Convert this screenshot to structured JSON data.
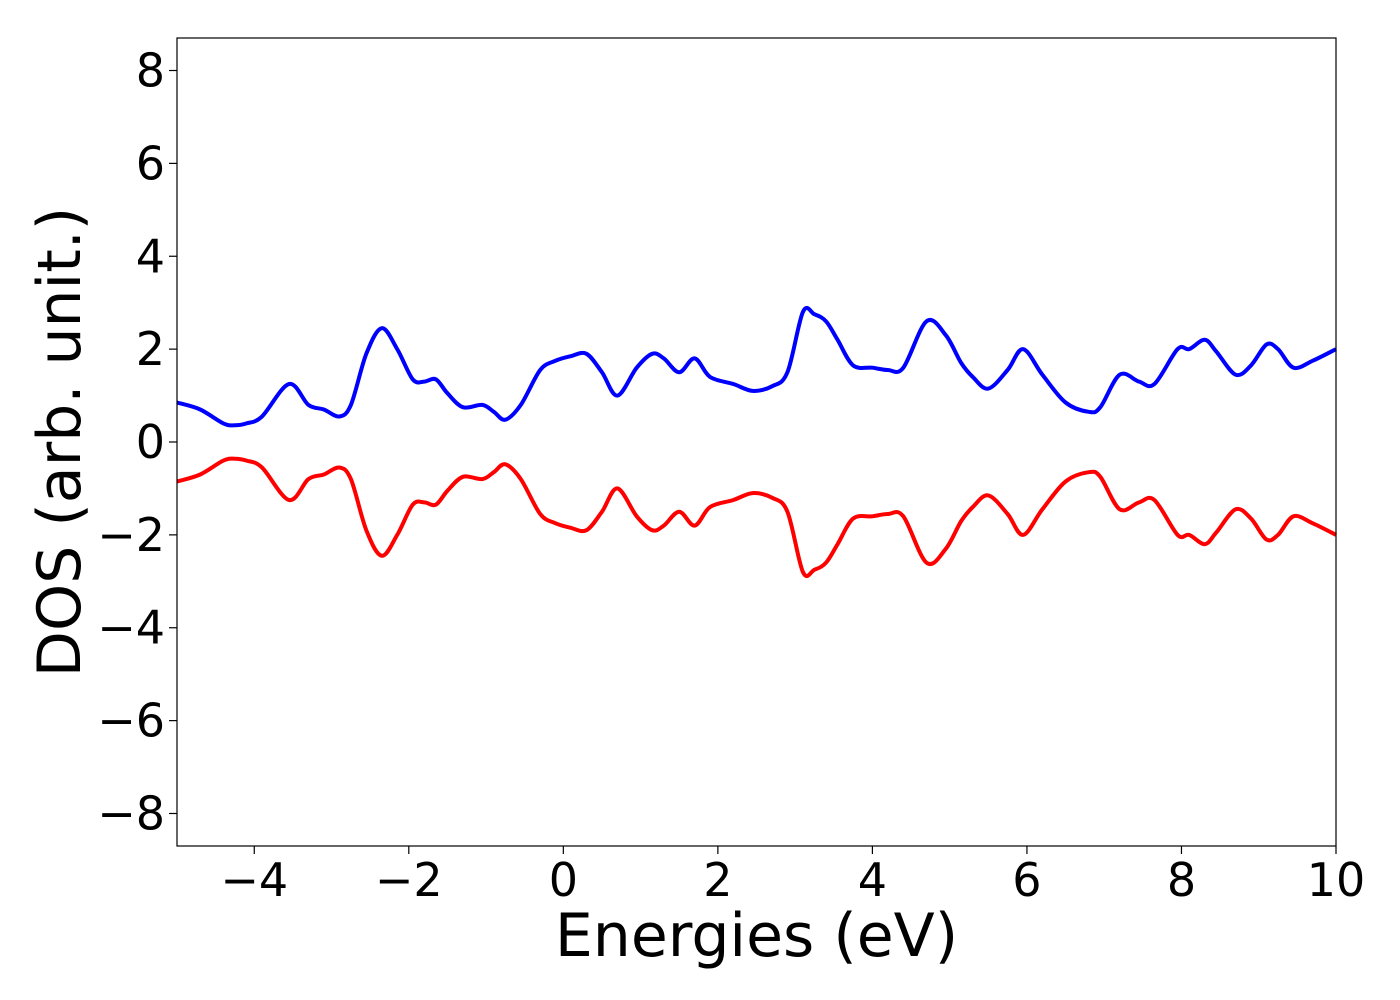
{
  "chart_data": {
    "type": "line",
    "title": "",
    "xlabel": "Energies (eV)",
    "ylabel": "DOS (arb. unit.)",
    "xlim": [
      -5,
      10
    ],
    "ylim": [
      -8.7,
      8.7
    ],
    "grid": false,
    "legend": "none",
    "xticks": [
      -4,
      -2,
      0,
      2,
      4,
      6,
      8,
      10
    ],
    "yticks": [
      -8,
      -6,
      -4,
      -2,
      0,
      2,
      4,
      6,
      8
    ],
    "series": [
      {
        "color": "#0000ff",
        "x": [
          -5.0,
          -4.7,
          -4.4,
          -4.25,
          -4.1,
          -3.9,
          -3.55,
          -3.3,
          -3.1,
          -2.9,
          -2.75,
          -2.55,
          -2.35,
          -2.15,
          -1.95,
          -1.8,
          -1.65,
          -1.5,
          -1.3,
          -1.05,
          -0.9,
          -0.75,
          -0.55,
          -0.3,
          -0.1,
          0.1,
          0.3,
          0.5,
          0.7,
          0.95,
          1.15,
          1.3,
          1.5,
          1.7,
          1.9,
          2.2,
          2.45,
          2.7,
          2.9,
          3.1,
          3.25,
          3.4,
          3.55,
          3.75,
          4.0,
          4.2,
          4.4,
          4.7,
          4.95,
          5.15,
          5.3,
          5.5,
          5.75,
          5.95,
          6.2,
          6.5,
          6.8,
          6.95,
          7.2,
          7.45,
          7.65,
          7.95,
          8.1,
          8.3,
          8.45,
          8.7,
          8.9,
          9.1,
          9.25,
          9.45,
          9.7,
          10.0
        ],
        "y": [
          0.85,
          0.7,
          0.4,
          0.36,
          0.4,
          0.55,
          1.25,
          0.8,
          0.7,
          0.55,
          0.8,
          1.9,
          2.45,
          2.0,
          1.35,
          1.3,
          1.35,
          1.05,
          0.75,
          0.8,
          0.65,
          0.48,
          0.8,
          1.55,
          1.75,
          1.85,
          1.9,
          1.5,
          1.0,
          1.6,
          1.9,
          1.8,
          1.5,
          1.8,
          1.4,
          1.25,
          1.1,
          1.2,
          1.5,
          2.8,
          2.75,
          2.6,
          2.2,
          1.65,
          1.6,
          1.55,
          1.6,
          2.6,
          2.3,
          1.7,
          1.4,
          1.15,
          1.55,
          2.0,
          1.45,
          0.85,
          0.65,
          0.75,
          1.45,
          1.3,
          1.25,
          2.0,
          2.0,
          2.2,
          1.95,
          1.45,
          1.65,
          2.1,
          2.0,
          1.6,
          1.75,
          2.0
        ]
      },
      {
        "color": "#ff0000",
        "x": [
          -5.0,
          -4.7,
          -4.4,
          -4.25,
          -4.1,
          -3.9,
          -3.55,
          -3.3,
          -3.1,
          -2.9,
          -2.75,
          -2.55,
          -2.35,
          -2.15,
          -1.95,
          -1.8,
          -1.65,
          -1.5,
          -1.3,
          -1.05,
          -0.9,
          -0.75,
          -0.55,
          -0.3,
          -0.1,
          0.1,
          0.3,
          0.5,
          0.7,
          0.95,
          1.15,
          1.3,
          1.5,
          1.7,
          1.9,
          2.2,
          2.45,
          2.7,
          2.9,
          3.1,
          3.25,
          3.4,
          3.55,
          3.75,
          4.0,
          4.2,
          4.4,
          4.7,
          4.95,
          5.15,
          5.3,
          5.5,
          5.75,
          5.95,
          6.2,
          6.5,
          6.8,
          6.95,
          7.2,
          7.45,
          7.65,
          7.95,
          8.1,
          8.3,
          8.45,
          8.7,
          8.9,
          9.1,
          9.25,
          9.45,
          9.7,
          10.0
        ],
        "y": [
          -0.85,
          -0.7,
          -0.4,
          -0.36,
          -0.4,
          -0.55,
          -1.25,
          -0.8,
          -0.7,
          -0.55,
          -0.8,
          -1.9,
          -2.45,
          -2.0,
          -1.35,
          -1.3,
          -1.35,
          -1.05,
          -0.75,
          -0.8,
          -0.65,
          -0.48,
          -0.8,
          -1.55,
          -1.75,
          -1.85,
          -1.9,
          -1.5,
          -1.0,
          -1.6,
          -1.9,
          -1.8,
          -1.5,
          -1.8,
          -1.4,
          -1.25,
          -1.1,
          -1.2,
          -1.5,
          -2.8,
          -2.75,
          -2.6,
          -2.2,
          -1.65,
          -1.6,
          -1.55,
          -1.6,
          -2.6,
          -2.3,
          -1.7,
          -1.4,
          -1.15,
          -1.55,
          -2.0,
          -1.45,
          -0.85,
          -0.65,
          -0.75,
          -1.45,
          -1.3,
          -1.25,
          -2.0,
          -2.0,
          -2.2,
          -1.95,
          -1.45,
          -1.65,
          -2.1,
          -2.0,
          -1.6,
          -1.75,
          -2.0
        ]
      }
    ]
  }
}
